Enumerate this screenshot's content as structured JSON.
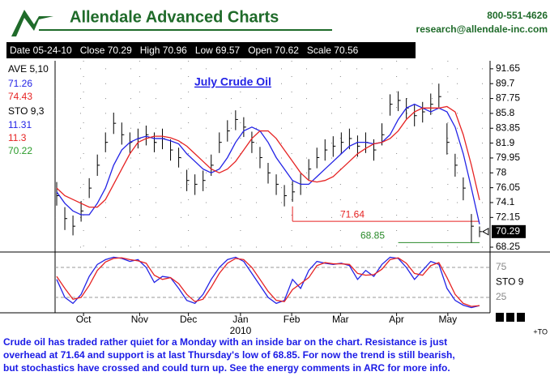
{
  "header": {
    "logo": "Allendale Advanced Charts",
    "phone": "800-551-4626",
    "email": "research@allendale-inc.com",
    "info": [
      "Date 05-24-10",
      "Close 70.29",
      "High 70.96",
      "Low 69.57",
      "Open 70.62",
      "Scale 70.56"
    ]
  },
  "chart_data": {
    "type": "ohlc",
    "title": "July Crude Oil",
    "high": [
      76.8,
      73.5,
      72.4,
      74.3,
      77.3,
      80.4,
      83.3,
      85.9,
      84.6,
      83.3,
      83.8,
      84.2,
      83.3,
      83.8,
      82.4,
      81.3,
      78.4,
      77.8,
      78.3,
      80.4,
      83.3,
      84.9,
      86.2,
      85.3,
      83.4,
      81.4,
      79.3,
      77.8,
      76.4,
      76.9,
      77.9,
      79.8,
      81.3,
      82.4,
      82.8,
      83.3,
      83.8,
      82.9,
      83.3,
      82.4,
      84.5,
      88.3,
      88.7,
      87.8,
      86.9,
      87.3,
      88.4,
      89.7,
      84.5,
      80.5,
      77.4,
      72.6,
      70.96
    ],
    "low": [
      73.7,
      70.5,
      69.8,
      71.6,
      74.7,
      77.6,
      80.7,
      83.1,
      81.7,
      80.6,
      81.2,
      81.6,
      80.7,
      81.1,
      79.6,
      78.7,
      75.6,
      75.1,
      75.6,
      77.6,
      80.6,
      82.1,
      83.6,
      82.7,
      80.6,
      78.6,
      76.6,
      75.1,
      73.6,
      74.2,
      75.1,
      77.1,
      78.6,
      79.6,
      80.1,
      80.6,
      81.1,
      80.1,
      80.6,
      79.6,
      81.6,
      85.5,
      86.1,
      85.1,
      84.1,
      84.6,
      85.6,
      86.6,
      80.4,
      77.5,
      74.4,
      68.85,
      69.57
    ],
    "close": [
      75,
      72,
      71,
      73,
      76,
      79,
      82,
      84.5,
      83,
      82,
      82.5,
      83,
      82,
      82.5,
      81,
      80,
      77,
      76.5,
      77,
      79,
      82,
      83.5,
      85,
      84,
      82,
      80,
      78,
      76.5,
      75,
      75.5,
      76.5,
      78.5,
      80,
      81,
      81.5,
      82,
      82.5,
      81.5,
      82,
      81,
      83,
      87,
      87.5,
      86.5,
      85.5,
      86,
      87,
      88,
      82,
      79,
      76,
      71,
      70.29
    ],
    "bar_color": "#000000",
    "averages": {
      "label": "AVE 5,10",
      "series": [
        {
          "color": "#2323e6",
          "values": [
            75.5,
            74,
            73,
            72.5,
            72.5,
            74,
            76,
            79,
            81,
            82,
            82.5,
            82.8,
            82.5,
            82.5,
            82.2,
            81.8,
            80.5,
            79.5,
            78.5,
            78,
            78.5,
            80,
            82,
            83.5,
            84,
            83.5,
            82,
            80,
            78.5,
            77,
            76.5,
            76.5,
            77.5,
            78.5,
            79.5,
            80.5,
            81.5,
            82,
            82,
            81.8,
            82,
            83,
            85,
            86.5,
            87,
            86.5,
            86,
            86.5,
            86,
            84,
            80.5,
            76,
            71.26
          ]
        },
        {
          "color": "#e62323",
          "values": [
            76,
            75,
            74.5,
            74,
            73.5,
            73.5,
            74.5,
            76.5,
            78.5,
            80.5,
            82,
            82.5,
            82.8,
            82.8,
            82.6,
            82.2,
            81.5,
            80.5,
            79.5,
            78.5,
            78,
            78.5,
            79.5,
            81,
            82.5,
            83.5,
            83.5,
            82.5,
            81,
            79.5,
            78,
            77,
            76.8,
            77,
            77.5,
            78.5,
            79.5,
            80.5,
            81.2,
            81.8,
            82,
            82.5,
            83.5,
            85,
            86,
            86.5,
            86.5,
            86.5,
            86.7,
            86,
            83,
            79,
            74.43
          ]
        }
      ]
    },
    "resistance": 71.64,
    "resistance_color": "#e62323",
    "support": 68.85,
    "support_color": "#2a8a2a",
    "ylim": [
      67.72,
      92.7
    ],
    "yticks": [
      91.65,
      89.7,
      87.75,
      85.8,
      83.85,
      81.9,
      79.95,
      78,
      76.05,
      74.1,
      72.15,
      68.25
    ],
    "xticks": [
      {
        "value": 3.3,
        "label": "Oct"
      },
      {
        "value": 10.2,
        "label": "Nov"
      },
      {
        "value": 16.2,
        "label": "Dec"
      },
      {
        "value": 22.6,
        "label": "Jan"
      },
      {
        "value": 28.9,
        "label": "Feb"
      },
      {
        "value": 34.9,
        "label": "Mar"
      },
      {
        "value": 41.8,
        "label": "Apr"
      },
      {
        "value": 48.1,
        "label": "May"
      }
    ],
    "year_label": "2010",
    "corner_label": "+TO",
    "grid": true,
    "stochastic": {
      "label": "STO 9,3",
      "axis_label": "STO 9",
      "ylim": [
        0,
        100
      ],
      "yticks": [
        75,
        25
      ],
      "extra": 70.22,
      "extra_color": "#2a9a2a",
      "series": [
        {
          "color": "#2323e6",
          "values": [
            55,
            25,
            15,
            30,
            60,
            80,
            88,
            92,
            90,
            85,
            88,
            75,
            50,
            60,
            58,
            40,
            20,
            15,
            30,
            55,
            75,
            88,
            92,
            85,
            65,
            45,
            25,
            15,
            20,
            55,
            40,
            70,
            85,
            82,
            80,
            82,
            78,
            55,
            70,
            60,
            80,
            92,
            90,
            75,
            55,
            70,
            85,
            80,
            40,
            20,
            12,
            8,
            11.31
          ]
        },
        {
          "color": "#e62323",
          "values": [
            60,
            40,
            22,
            25,
            45,
            70,
            84,
            90,
            91,
            88,
            86,
            82,
            62,
            55,
            58,
            48,
            30,
            18,
            22,
            42,
            65,
            82,
            90,
            88,
            75,
            55,
            35,
            20,
            18,
            38,
            48,
            58,
            78,
            83,
            81,
            81,
            80,
            65,
            62,
            63,
            72,
            88,
            91,
            82,
            65,
            62,
            78,
            83,
            58,
            30,
            15,
            10,
            11.3
          ]
        }
      ]
    }
  },
  "footer": [
    "Crude oil has traded rather quiet for a Monday with an inside bar on the chart. Resistance is just",
    "overhead at 71.64 and support is at last Thursday's low of 68.85. For now the trend is still bearish,",
    "but stochastics have crossed and could turn up. See the energy comments in ARC for more info."
  ]
}
